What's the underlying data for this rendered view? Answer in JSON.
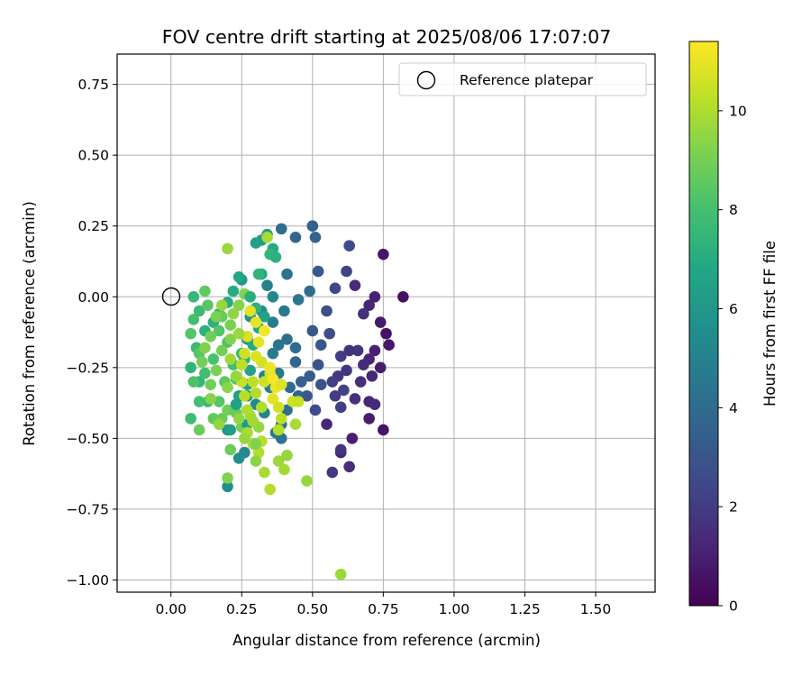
{
  "chart_data": {
    "type": "scatter",
    "title": "FOV centre drift starting at 2025/08/06 17:07:07",
    "xlabel": "Angular distance from reference (arcmin)",
    "ylabel": "Rotation from reference (arcmin)",
    "xlim": [
      -0.19,
      1.71
    ],
    "ylim": [
      -1.043,
      0.857
    ],
    "xticks": [
      "0.00",
      "0.25",
      "0.50",
      "0.75",
      "1.00",
      "1.25",
      "1.50"
    ],
    "yticks": [
      "0.75",
      "0.50",
      "0.25",
      "0.00",
      "−0.25",
      "−0.50",
      "−0.75",
      "−1.00"
    ],
    "grid": true,
    "legend": {
      "placement": "top-right",
      "entries": [
        "Reference platepar"
      ]
    },
    "colorbar": {
      "label": "Hours from first FF file",
      "range": [
        0,
        11.4
      ],
      "ticks": [
        "0",
        "2",
        "4",
        "6",
        "8",
        "10"
      ],
      "colormap": "viridis"
    },
    "reference_point": {
      "x": 0.0,
      "y": 0.0
    },
    "points": [
      [
        0.75,
        0.15,
        0.7
      ],
      [
        0.82,
        0.0,
        0.5
      ],
      [
        0.74,
        -0.09,
        0.8
      ],
      [
        0.76,
        -0.13,
        0.6
      ],
      [
        0.77,
        -0.17,
        0.7
      ],
      [
        0.72,
        -0.19,
        1.0
      ],
      [
        0.7,
        -0.22,
        1.2
      ],
      [
        0.68,
        -0.24,
        1.4
      ],
      [
        0.74,
        -0.25,
        0.9
      ],
      [
        0.71,
        -0.28,
        1.3
      ],
      [
        0.67,
        -0.3,
        1.5
      ],
      [
        0.63,
        -0.19,
        1.6
      ],
      [
        0.62,
        -0.26,
        1.8
      ],
      [
        0.66,
        -0.19,
        1.7
      ],
      [
        0.59,
        -0.28,
        1.9
      ],
      [
        0.6,
        -0.21,
        2.0
      ],
      [
        0.57,
        -0.3,
        2.1
      ],
      [
        0.61,
        -0.33,
        2.2
      ],
      [
        0.58,
        -0.35,
        2.0
      ],
      [
        0.65,
        -0.36,
        1.6
      ],
      [
        0.7,
        -0.37,
        1.3
      ],
      [
        0.72,
        -0.38,
        1.4
      ],
      [
        0.7,
        -0.43,
        0.9
      ],
      [
        0.75,
        -0.47,
        0.6
      ],
      [
        0.64,
        -0.5,
        1.0
      ],
      [
        0.6,
        -0.55,
        1.1
      ],
      [
        0.55,
        -0.45,
        1.3
      ],
      [
        0.6,
        -0.39,
        2.1
      ],
      [
        0.63,
        -0.6,
        1.5
      ],
      [
        0.57,
        -0.62,
        1.8
      ],
      [
        0.6,
        -0.54,
        1.7
      ],
      [
        0.7,
        -0.03,
        1.2
      ],
      [
        0.65,
        0.04,
        1.4
      ],
      [
        0.68,
        -0.06,
        1.6
      ],
      [
        0.72,
        0.0,
        1.1
      ],
      [
        0.62,
        0.09,
        2.3
      ],
      [
        0.63,
        0.18,
        2.6
      ],
      [
        0.58,
        0.03,
        2.4
      ],
      [
        0.55,
        -0.05,
        2.8
      ],
      [
        0.52,
        0.09,
        3.1
      ],
      [
        0.5,
        0.25,
        3.4
      ],
      [
        0.51,
        0.21,
        3.6
      ],
      [
        0.44,
        0.21,
        3.8
      ],
      [
        0.39,
        0.24,
        4.1
      ],
      [
        0.41,
        0.08,
        4.3
      ],
      [
        0.49,
        0.02,
        4.0
      ],
      [
        0.45,
        -0.01,
        4.5
      ],
      [
        0.4,
        -0.05,
        4.6
      ],
      [
        0.36,
        -0.09,
        4.7
      ],
      [
        0.34,
        0.04,
        5.0
      ],
      [
        0.36,
        -0.0,
        5.2
      ],
      [
        0.32,
        -0.05,
        5.4
      ],
      [
        0.5,
        -0.12,
        3.2
      ],
      [
        0.53,
        -0.17,
        3.0
      ],
      [
        0.56,
        -0.13,
        2.7
      ],
      [
        0.52,
        -0.24,
        2.9
      ],
      [
        0.49,
        -0.28,
        3.3
      ],
      [
        0.46,
        -0.3,
        3.5
      ],
      [
        0.44,
        -0.23,
        3.7
      ],
      [
        0.48,
        -0.35,
        3.1
      ],
      [
        0.53,
        -0.31,
        2.8
      ],
      [
        0.51,
        -0.4,
        2.6
      ],
      [
        0.45,
        -0.35,
        3.5
      ],
      [
        0.42,
        -0.32,
        3.9
      ],
      [
        0.44,
        -0.18,
        4.0
      ],
      [
        0.38,
        -0.17,
        4.4
      ],
      [
        0.41,
        -0.15,
        4.2
      ],
      [
        0.36,
        -0.2,
        4.8
      ],
      [
        0.38,
        -0.27,
        4.5
      ],
      [
        0.33,
        -0.28,
        5.0
      ],
      [
        0.35,
        -0.32,
        4.9
      ],
      [
        0.41,
        -0.4,
        4.1
      ],
      [
        0.39,
        -0.45,
        4.4
      ],
      [
        0.37,
        -0.48,
        4.7
      ],
      [
        0.39,
        -0.5,
        4.3
      ],
      [
        0.33,
        -0.41,
        5.1
      ],
      [
        0.27,
        -0.35,
        5.6
      ],
      [
        0.3,
        -0.38,
        5.3
      ],
      [
        0.26,
        -0.55,
        5.3
      ],
      [
        0.24,
        -0.57,
        5.5
      ],
      [
        0.2,
        -0.67,
        5.6
      ],
      [
        0.2,
        -0.47,
        5.8
      ],
      [
        0.27,
        -0.15,
        5.8
      ],
      [
        0.28,
        -0.07,
        5.9
      ],
      [
        0.25,
        0.06,
        6.0
      ],
      [
        0.32,
        0.2,
        6.2
      ],
      [
        0.34,
        0.22,
        6.1
      ],
      [
        0.3,
        0.19,
        6.4
      ],
      [
        0.36,
        0.17,
        6.9
      ],
      [
        0.32,
        0.08,
        6.8
      ],
      [
        0.24,
        0.07,
        6.8
      ],
      [
        0.22,
        0.02,
        7.0
      ],
      [
        0.2,
        -0.02,
        7.0
      ],
      [
        0.17,
        -0.06,
        7.3
      ],
      [
        0.15,
        -0.09,
        7.2
      ],
      [
        0.12,
        -0.12,
        7.2
      ],
      [
        0.09,
        -0.18,
        7.7
      ],
      [
        0.07,
        -0.25,
        7.4
      ],
      [
        0.1,
        -0.3,
        7.5
      ],
      [
        0.13,
        -0.37,
        7.6
      ],
      [
        0.07,
        -0.43,
        7.8
      ],
      [
        0.1,
        -0.37,
        8.0
      ],
      [
        0.08,
        -0.3,
        8.2
      ],
      [
        0.12,
        -0.27,
        7.9
      ],
      [
        0.15,
        -0.22,
        8.1
      ],
      [
        0.1,
        -0.2,
        8.4
      ],
      [
        0.07,
        -0.13,
        8.3
      ],
      [
        0.08,
        -0.08,
        8.0
      ],
      [
        0.1,
        -0.05,
        7.7
      ],
      [
        0.08,
        -0.0,
        7.6
      ],
      [
        0.12,
        0.02,
        8.6
      ],
      [
        0.13,
        -0.03,
        8.4
      ],
      [
        0.18,
        -0.07,
        8.7
      ],
      [
        0.17,
        -0.12,
        8.3
      ],
      [
        0.2,
        -0.16,
        8.1
      ],
      [
        0.22,
        -0.24,
        7.9
      ],
      [
        0.25,
        -0.2,
        7.6
      ],
      [
        0.23,
        -0.29,
        8.2
      ],
      [
        0.19,
        -0.3,
        8.5
      ],
      [
        0.17,
        -0.37,
        8.4
      ],
      [
        0.15,
        -0.43,
        8.6
      ],
      [
        0.18,
        -0.43,
        8.8
      ],
      [
        0.2,
        -0.4,
        8.9
      ],
      [
        0.23,
        -0.41,
        8.7
      ],
      [
        0.25,
        -0.46,
        9.0
      ],
      [
        0.21,
        -0.54,
        8.8
      ],
      [
        0.2,
        -0.64,
        9.2
      ],
      [
        0.1,
        -0.47,
        8.8
      ],
      [
        0.14,
        -0.31,
        8.9
      ],
      [
        0.16,
        -0.26,
        9.1
      ],
      [
        0.18,
        -0.19,
        9.0
      ],
      [
        0.21,
        -0.15,
        9.3
      ],
      [
        0.21,
        -0.1,
        9.1
      ],
      [
        0.24,
        -0.03,
        9.3
      ],
      [
        0.26,
        0.01,
        9.2
      ],
      [
        0.2,
        0.17,
        9.7
      ],
      [
        0.34,
        0.21,
        9.9
      ],
      [
        0.35,
        0.15,
        7.5
      ],
      [
        0.37,
        0.14,
        7.2
      ],
      [
        0.31,
        0.08,
        7.4
      ],
      [
        0.28,
        -0.0,
        7.1
      ],
      [
        0.3,
        -0.04,
        7.3
      ],
      [
        0.33,
        -0.07,
        6.5
      ],
      [
        0.31,
        -0.11,
        6.7
      ],
      [
        0.29,
        -0.17,
        6.9
      ],
      [
        0.26,
        -0.22,
        7.2
      ],
      [
        0.28,
        -0.26,
        6.6
      ],
      [
        0.27,
        -0.31,
        6.4
      ],
      [
        0.24,
        -0.35,
        6.3
      ],
      [
        0.23,
        -0.38,
        6.5
      ],
      [
        0.21,
        -0.47,
        6.4
      ],
      [
        0.27,
        -0.45,
        6.1
      ],
      [
        0.31,
        -0.46,
        9.6
      ],
      [
        0.28,
        -0.42,
        9.8
      ],
      [
        0.32,
        -0.39,
        10.0
      ],
      [
        0.3,
        -0.34,
        10.1
      ],
      [
        0.29,
        -0.3,
        10.3
      ],
      [
        0.33,
        -0.3,
        10.5
      ],
      [
        0.35,
        -0.27,
        10.7
      ],
      [
        0.32,
        -0.23,
        10.6
      ],
      [
        0.3,
        -0.21,
        10.8
      ],
      [
        0.31,
        -0.16,
        11.0
      ],
      [
        0.33,
        -0.12,
        11.2
      ],
      [
        0.3,
        -0.09,
        11.0
      ],
      [
        0.28,
        -0.05,
        10.9
      ],
      [
        0.27,
        -0.14,
        10.7
      ],
      [
        0.26,
        -0.2,
        10.6
      ],
      [
        0.25,
        -0.24,
        10.3
      ],
      [
        0.25,
        -0.3,
        10.4
      ],
      [
        0.26,
        -0.35,
        10.2
      ],
      [
        0.27,
        -0.4,
        10.0
      ],
      [
        0.29,
        -0.44,
        9.8
      ],
      [
        0.27,
        -0.48,
        9.9
      ],
      [
        0.29,
        -0.52,
        10.0
      ],
      [
        0.31,
        -0.55,
        10.1
      ],
      [
        0.33,
        -0.62,
        9.9
      ],
      [
        0.35,
        -0.68,
        10.1
      ],
      [
        0.38,
        -0.58,
        9.7
      ],
      [
        0.4,
        -0.61,
        9.8
      ],
      [
        0.41,
        -0.56,
        9.6
      ],
      [
        0.38,
        -0.47,
        10.2
      ],
      [
        0.39,
        -0.43,
        10.3
      ],
      [
        0.38,
        -0.39,
        10.6
      ],
      [
        0.36,
        -0.36,
        10.9
      ],
      [
        0.37,
        -0.32,
        11.1
      ],
      [
        0.36,
        -0.29,
        11.3
      ],
      [
        0.35,
        -0.25,
        11.1
      ],
      [
        0.39,
        -0.31,
        10.8
      ],
      [
        0.43,
        -0.37,
        10.6
      ],
      [
        0.45,
        -0.37,
        10.4
      ],
      [
        0.44,
        -0.45,
        9.9
      ],
      [
        0.48,
        -0.65,
        9.6
      ],
      [
        0.6,
        -0.98,
        9.7
      ],
      [
        0.32,
        -0.51,
        10.2
      ],
      [
        0.3,
        -0.58,
        9.4
      ],
      [
        0.3,
        -0.52,
        9.2
      ],
      [
        0.2,
        -0.32,
        9.4
      ],
      [
        0.23,
        -0.28,
        9.6
      ],
      [
        0.21,
        -0.22,
        9.8
      ],
      [
        0.24,
        -0.13,
        9.7
      ],
      [
        0.22,
        -0.06,
        9.5
      ],
      [
        0.18,
        -0.03,
        9.6
      ],
      [
        0.16,
        -0.07,
        9.1
      ],
      [
        0.14,
        -0.14,
        8.9
      ],
      [
        0.12,
        -0.18,
        9.2
      ],
      [
        0.11,
        -0.23,
        9.0
      ],
      [
        0.14,
        -0.36,
        9.3
      ],
      [
        0.17,
        -0.45,
        9.5
      ],
      [
        0.26,
        -0.5,
        9.6
      ],
      [
        0.24,
        -0.43,
        9.5
      ]
    ]
  }
}
